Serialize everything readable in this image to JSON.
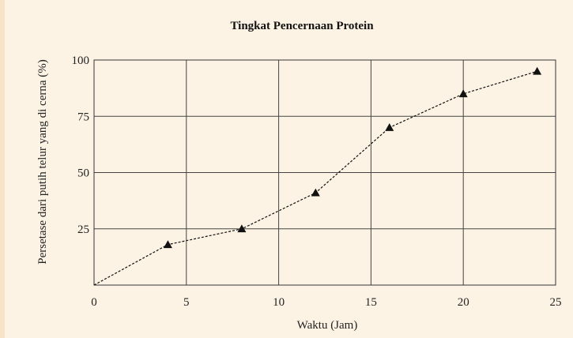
{
  "chart_data": {
    "type": "line",
    "title": "Tingkat Pencernaan Protein",
    "xlabel": "Waktu (Jam)",
    "ylabel": "Persetase dari putih telur yang di cerna (%)",
    "xlim": [
      0,
      25
    ],
    "ylim": [
      0,
      100
    ],
    "xticks": [
      0,
      5,
      10,
      15,
      20,
      25
    ],
    "yticks": [
      25,
      50,
      75,
      100
    ],
    "grid": true,
    "series": [
      {
        "marker": "triangle",
        "line_style": "dashed",
        "x": [
          0,
          4,
          8,
          12,
          16,
          20,
          24
        ],
        "y": [
          0,
          18,
          25,
          41,
          70,
          85,
          95
        ],
        "marker_shown": [
          false,
          true,
          true,
          true,
          true,
          true,
          true
        ]
      }
    ]
  }
}
